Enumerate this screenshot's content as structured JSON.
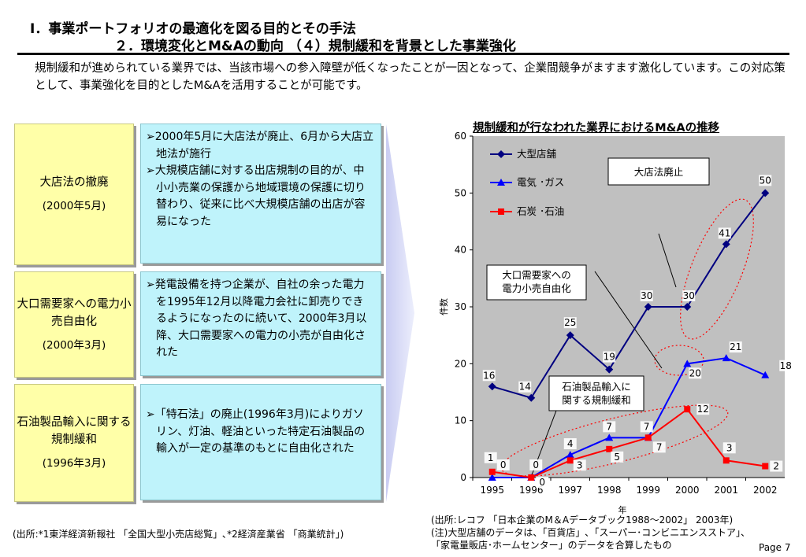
{
  "header": {
    "title": "Ⅰ．事業ポートフォリオの最適化を図る目的とその手法",
    "subtitle": "２．環境変化とM&Aの動向 （４）規制緩和を背景とした事業強化"
  },
  "intro": "規制緩和が進められている業界では、当該市場への参入障壁が低くなったことが一因となって、企業間競争がますます激化しています。この対応策として、事業強化を目的としたM&Aを活用することが可能です。",
  "rows": [
    {
      "label": "大店法の撤廃",
      "date": "(2000年5月)",
      "bullets": [
        "➢2000年5月に大店法が廃止、6月から大店立地法が施行",
        "➢大規模店舗に対する出店規制の目的が、中小小売業の保護から地域環境の保護に切り替わり、従来に比べ大規模店舗の出店が容易になった"
      ]
    },
    {
      "label": "大口需要家への電力小売自由化",
      "date": "(2000年3月)",
      "bullets": [
        "➢発電設備を持つ企業が、自社の余った電力を1995年12月以降電力会社に卸売りできるようになったのに続いて、2000年3月以降、大口需要家への電力の小売が自由化された"
      ]
    },
    {
      "label": "石油製品輸入に関する規制緩和",
      "date": "(1996年3月)",
      "bullets": [
        "➢「特石法」の廃止(1996年3月)によりガソリン、灯油、軽油といった特定石油製品の輸入が一定の基準のもとに自由化された"
      ]
    }
  ],
  "chart_data": {
    "type": "line",
    "title": "規制緩和が行なわれた業界におけるM&Aの推移",
    "xlabel": "年",
    "ylabel": "件数",
    "ylim": [
      0,
      60
    ],
    "yticks": [
      0,
      10,
      20,
      30,
      40,
      50,
      60
    ],
    "x": [
      "1995",
      "1996",
      "1997",
      "1998",
      "1999",
      "2000",
      "2001",
      "2002"
    ],
    "series": [
      {
        "name": "大型店舗",
        "color": "#000080",
        "marker": "diamond",
        "values": [
          16,
          14,
          25,
          19,
          30,
          30,
          41,
          50
        ]
      },
      {
        "name": "電気 ･ガス",
        "color": "#0000ff",
        "marker": "triangle",
        "values": [
          0,
          0,
          4,
          7,
          7,
          20,
          21,
          18
        ]
      },
      {
        "name": "石炭 ･石油",
        "color": "#ff0000",
        "marker": "square",
        "values": [
          1,
          0,
          3,
          5,
          7,
          12,
          3,
          2
        ]
      }
    ],
    "legend": "top-left",
    "grid": false,
    "annotations": [
      "大店法廃止",
      "大口需要家への\n電力小売自由化",
      "石油製品輸入に\n関する規制緩和"
    ]
  },
  "sources": {
    "left": "(出所:*1東洋経済新報社 「全国大型小売店総覧」､*2経済産業省 「商業統計」)",
    "right": [
      "(出所:レコフ 「日本企業のM＆Aデータブック1988～2002」 2003年)",
      "(注)大型店舗のデータは、「百貨店」､「スーパー･コンビニエンスストア」、",
      "「家電量販店･ホームセンター」のデータを合算したもの"
    ]
  },
  "page": "Page 7"
}
